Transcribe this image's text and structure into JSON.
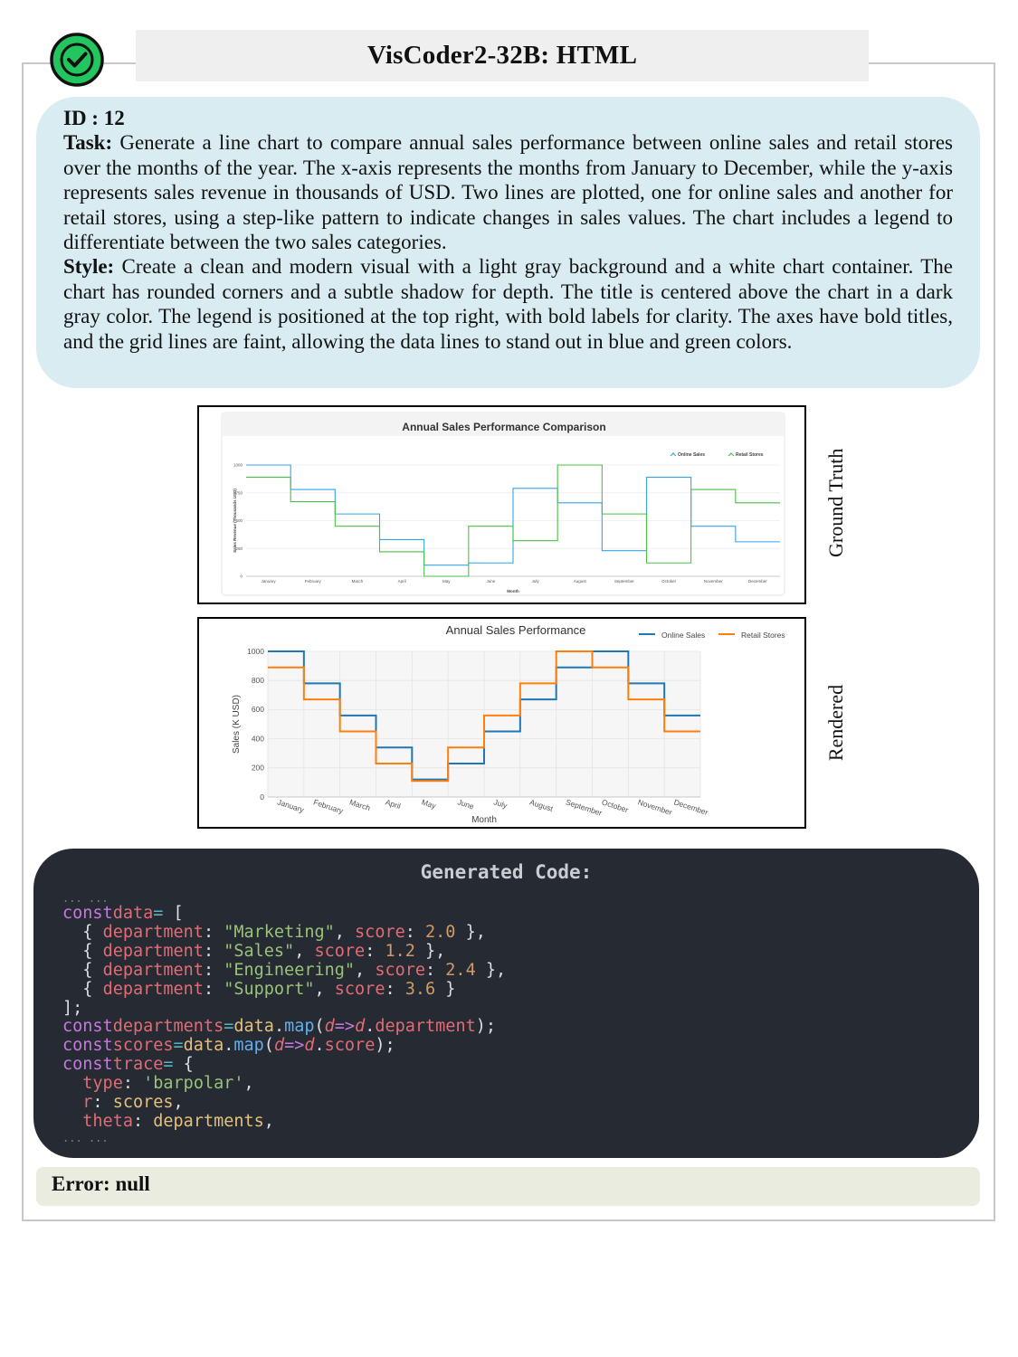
{
  "header": {
    "title": "VisCoder2-32B: HTML",
    "status_icon": "check-circle-icon",
    "status_color": "#22c55e"
  },
  "task": {
    "id_label": "ID : 12",
    "task_label": "Task:",
    "task_text": " Generate a line chart to compare annual sales performance between online sales and retail stores over the months of the year. The x-axis represents the months from January to December, while the y-axis represents sales revenue in thousands of USD. Two lines are plotted, one for online sales and another for retail stores, using a step-like pattern to indicate changes in sales values. The chart includes a legend to differentiate between the two sales categories.",
    "style_label": "Style:",
    "style_text": " Create a clean and modern visual with a light gray background and a white chart container. The chart has rounded corners and a subtle shadow for depth. The title is centered above the chart in a dark gray color. The legend is positioned at the top right, with bold labels for clarity. The axes have bold titles, and the grid lines are faint, allowing the data lines to stand out in blue and green colors."
  },
  "labels": {
    "ground_truth": "Ground Truth",
    "rendered": "Rendered"
  },
  "code": {
    "title": "Generated Code:",
    "ellipsis": "... ..."
  },
  "error": {
    "text": "Error: null"
  },
  "chart_data": [
    {
      "type": "line",
      "title": "Annual Sales Performance Comparison",
      "xlabel": "Month",
      "ylabel": "Sales Revenue (Thousands USD)",
      "categories": [
        "January",
        "February",
        "March",
        "April",
        "May",
        "June",
        "July",
        "August",
        "September",
        "October",
        "November",
        "December"
      ],
      "ylim": [
        0,
        1000
      ],
      "yticks": [
        0,
        250,
        500,
        750,
        1000
      ],
      "legend": "top-right",
      "series": [
        {
          "name": "Online Sales",
          "color": "#36a2eb",
          "values": [
            1000,
            780,
            560,
            330,
            100,
            120,
            790,
            660,
            230,
            890,
            450,
            310
          ]
        },
        {
          "name": "Retail Stores",
          "color": "#4bc046",
          "values": [
            890,
            670,
            450,
            220,
            0,
            450,
            320,
            1000,
            560,
            120,
            780,
            660
          ]
        }
      ]
    },
    {
      "type": "line",
      "title": "Annual Sales Performance",
      "xlabel": "Month",
      "ylabel": "Sales (K USD)",
      "categories": [
        "January",
        "February",
        "March",
        "April",
        "May",
        "June",
        "July",
        "August",
        "September",
        "October",
        "November",
        "December"
      ],
      "ylim": [
        0,
        1000
      ],
      "yticks": [
        0,
        200,
        400,
        600,
        800,
        1000
      ],
      "legend": "top-right",
      "series": [
        {
          "name": "Online Sales",
          "color": "#1f77b4",
          "values": [
            1000,
            780,
            560,
            340,
            120,
            230,
            450,
            670,
            890,
            1000,
            780,
            560
          ]
        },
        {
          "name": "Retail Stores",
          "color": "#ff7f0e",
          "values": [
            890,
            670,
            450,
            230,
            110,
            340,
            560,
            780,
            1000,
            890,
            670,
            450
          ]
        }
      ]
    }
  ]
}
